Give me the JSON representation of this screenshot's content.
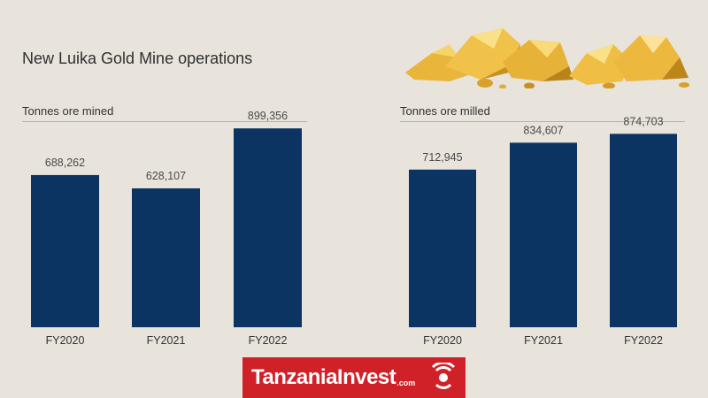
{
  "title": "New Luika Gold Mine operations",
  "brand": {
    "name": "TanzaniaInvest",
    "suffix": ".com",
    "color": "#d12128"
  },
  "colors": {
    "bar": "#0b3462",
    "background": "#e8e3db"
  },
  "chart_data": [
    {
      "type": "bar",
      "title": "Tonnes ore mined",
      "categories": [
        "FY2020",
        "FY2021",
        "FY2022"
      ],
      "values": [
        688262,
        628107,
        899356
      ],
      "value_labels": [
        "688,262",
        "628,107",
        "899,356"
      ],
      "ylim": [
        0,
        1350000
      ],
      "grid": false
    },
    {
      "type": "bar",
      "title": "Tonnes ore milled",
      "categories": [
        "FY2020",
        "FY2021",
        "FY2022"
      ],
      "values": [
        712945,
        834607,
        874703
      ],
      "value_labels": [
        "712,945",
        "834,607",
        "874,703"
      ],
      "ylim": [
        0,
        1350000
      ],
      "grid": false
    }
  ]
}
